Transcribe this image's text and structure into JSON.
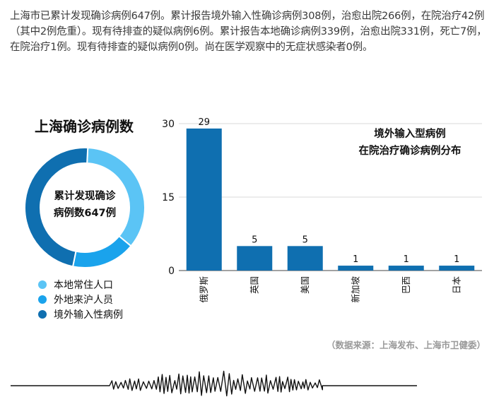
{
  "intro": {
    "paragraph": "上海市已累计发现确诊病例647例。累计报告境外输入性确诊病例308例，治愈出院266例，在院治疗42例（其中2例危重）。现有待排查的疑似病例6例。累计报告本地确诊病例339例，治愈出院331例，死亡7例，在院治疗1例。现有待排查的疑似病例0例。尚在医学观察中的无症状感染者0例。"
  },
  "donut": {
    "title": "上海确诊病例数",
    "center_line1": "累计发现确诊",
    "center_line2": "病例数647例",
    "legend": [
      {
        "label": "本地常住人口",
        "color": "#5bc4f5"
      },
      {
        "label": "外地来沪人员",
        "color": "#1aa3ec"
      },
      {
        "label": "境外输入性病例",
        "color": "#0f6fb0"
      }
    ]
  },
  "bar_chart": {
    "title_line1": "境外输入型病例",
    "title_line2": "在院治疗确诊病例分布",
    "bar_color": "#0f6fb0"
  },
  "chart_data": [
    {
      "type": "pie",
      "title": "上海确诊病例数",
      "categories": [
        "本地常住人口",
        "外地来沪人员",
        "境外输入性病例"
      ],
      "values": [
        228,
        111,
        308
      ],
      "colors": [
        "#5bc4f5",
        "#1aa3ec",
        "#0f6fb0"
      ]
    },
    {
      "type": "bar",
      "title": "境外输入型病例在院治疗确诊病例分布",
      "categories": [
        "俄罗斯",
        "英国",
        "美国",
        "新加坡",
        "巴西",
        "日本"
      ],
      "values": [
        29,
        5,
        5,
        1,
        1,
        1
      ],
      "ylim": [
        0,
        30
      ],
      "yticks": [
        0,
        15,
        30
      ],
      "grid": true
    }
  ],
  "source": "（数据来源：上海发布、上海市卫健委）"
}
